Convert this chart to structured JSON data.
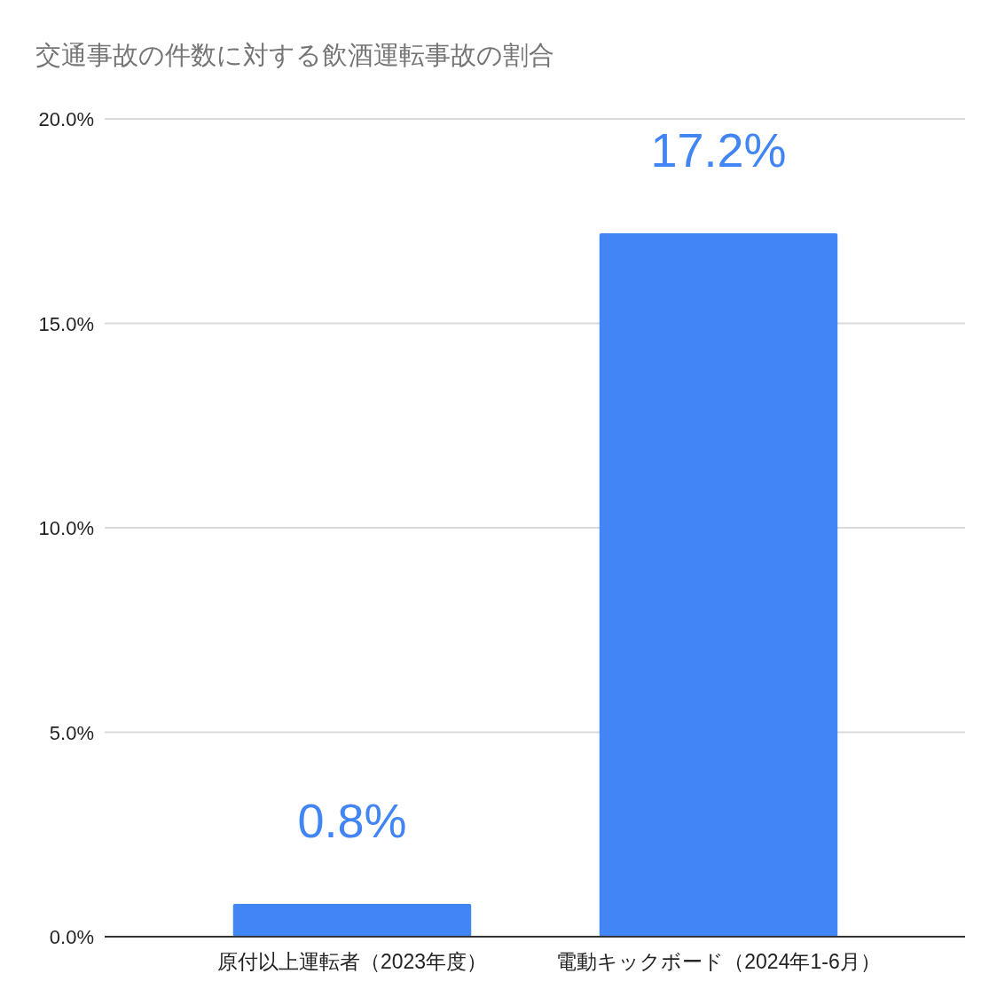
{
  "chart_data": {
    "type": "bar",
    "title": "交通事故の件数に対する飲酒運転事故の割合",
    "categories": [
      "原付以上運転者（2023年度）",
      "電動キックボード（2024年1-6月）"
    ],
    "values": [
      0.8,
      17.2
    ],
    "value_labels": [
      "0.8%",
      "17.2%"
    ],
    "color": "#4285f4",
    "ylim": [
      0,
      20
    ],
    "yticks": [
      {
        "value": 0,
        "label": "0.0%"
      },
      {
        "value": 5,
        "label": "5.0%"
      },
      {
        "value": 10,
        "label": "10.0%"
      },
      {
        "value": 15,
        "label": "15.0%"
      },
      {
        "value": 20,
        "label": "20.0%"
      }
    ],
    "grid": "y"
  }
}
